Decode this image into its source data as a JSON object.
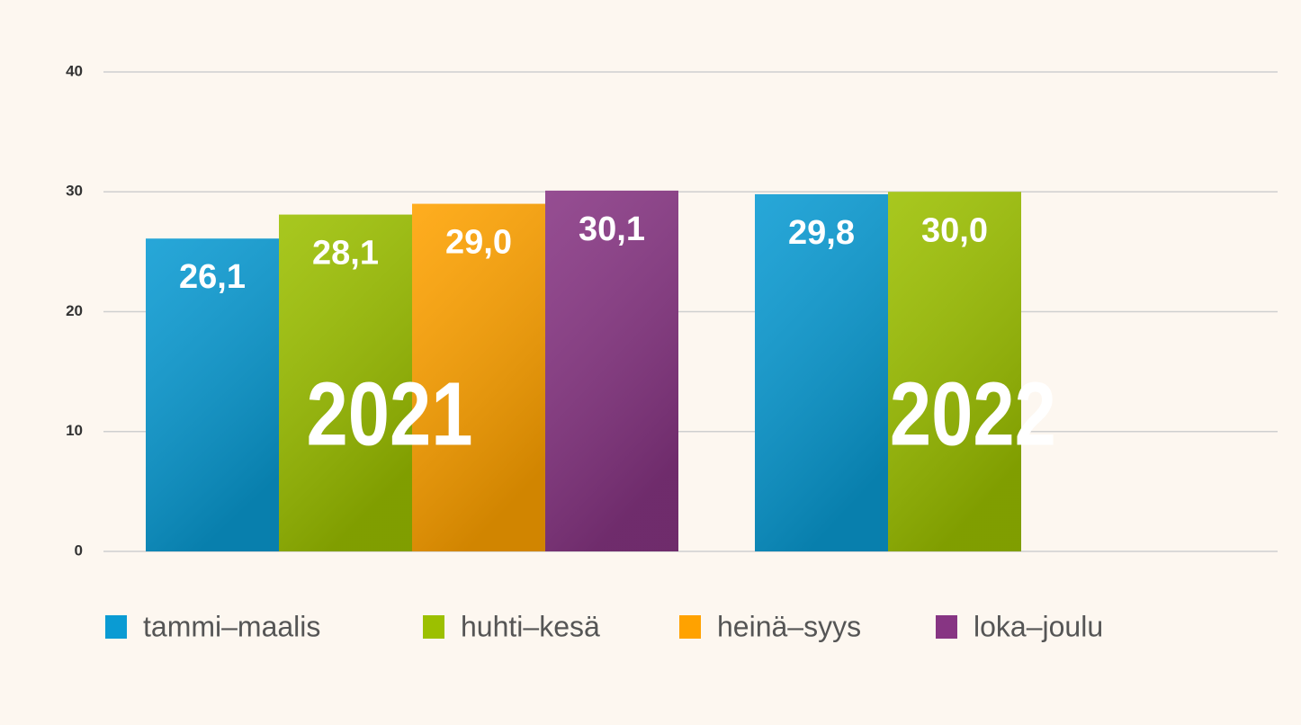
{
  "chart_data": {
    "type": "bar",
    "categories": [
      "2021",
      "2022"
    ],
    "series": [
      {
        "name": "tammi–maalis",
        "color": "#0a9bd3",
        "values": [
          26.1,
          29.8
        ],
        "value_labels": [
          "26,1",
          "29,8"
        ]
      },
      {
        "name": "huhti–kesä",
        "color": "#9cc000",
        "values": [
          28.1,
          30.0
        ],
        "value_labels": [
          "28,1",
          "30,0"
        ]
      },
      {
        "name": "heinä–syys",
        "color": "#ffa200",
        "values": [
          29.0,
          null
        ],
        "value_labels": [
          "29,0",
          null
        ]
      },
      {
        "name": "loka–joulu",
        "color": "#873583",
        "values": [
          30.1,
          null
        ],
        "value_labels": [
          "30,1",
          null
        ]
      }
    ],
    "ylim": [
      0,
      40
    ],
    "yticks": [
      0,
      10,
      20,
      30,
      40
    ],
    "grid": true,
    "legend": "bottom"
  }
}
